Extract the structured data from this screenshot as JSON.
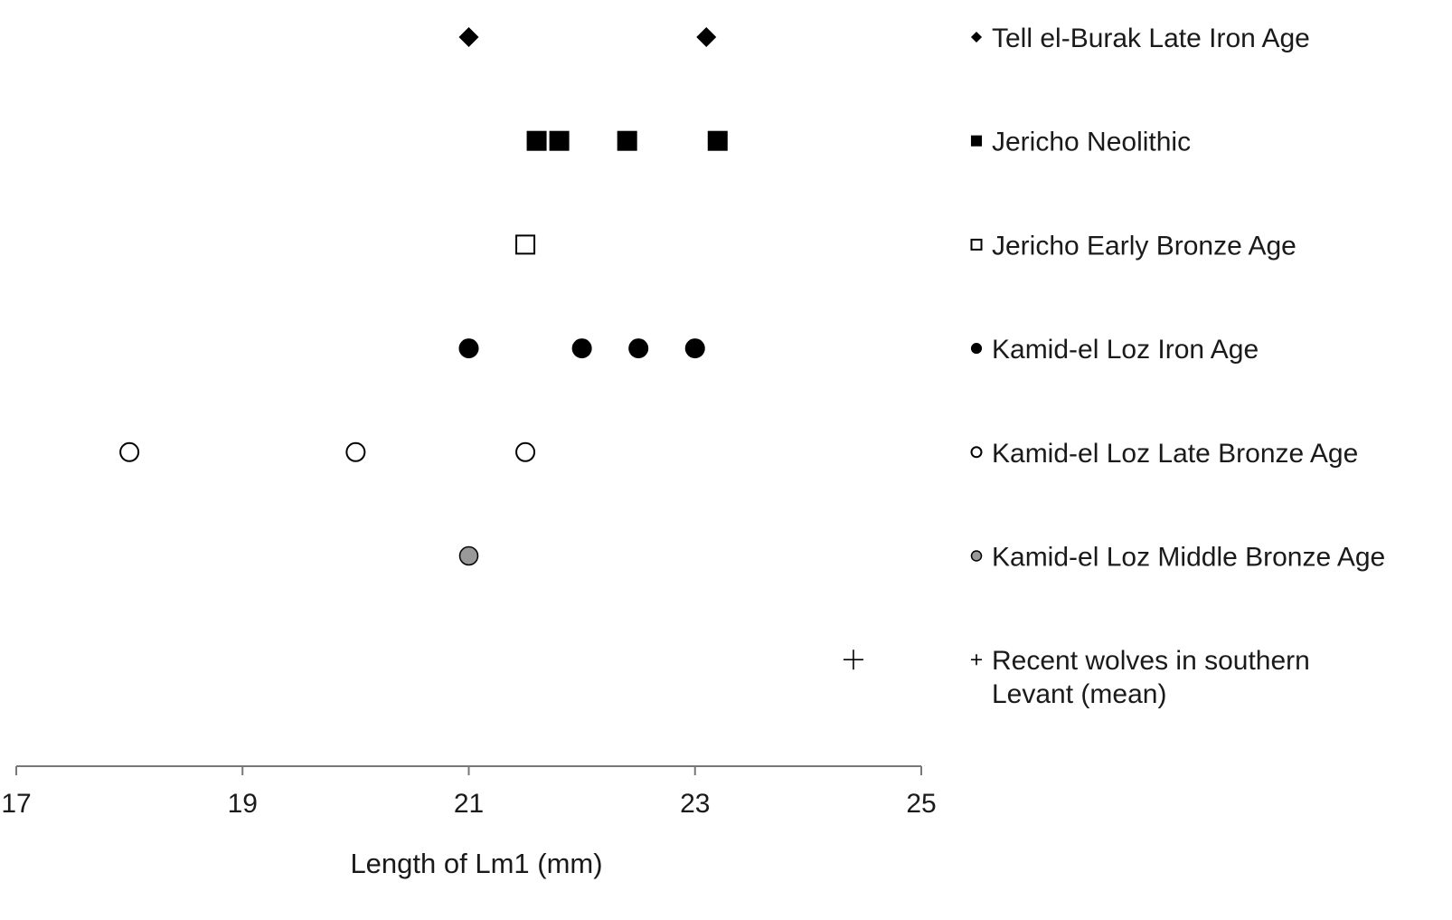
{
  "chart_data": {
    "type": "scatter",
    "title": "",
    "xlabel": "Length of Lm1 (mm)",
    "ylabel": "",
    "xlim": [
      17,
      25
    ],
    "xticks": [
      17,
      19,
      21,
      23,
      25
    ],
    "grid": false,
    "legend_position": "right",
    "series": [
      {
        "name": "Tell el-Burak Late Iron Age",
        "marker": "diamond-filled",
        "color": "#000000",
        "x": [
          21.0,
          23.1
        ]
      },
      {
        "name": "Jericho Neolithic",
        "marker": "square-filled",
        "color": "#000000",
        "x": [
          21.6,
          21.8,
          22.4,
          23.2
        ]
      },
      {
        "name": "Jericho Early Bronze Age",
        "marker": "square-open",
        "color": "#000000",
        "x": [
          21.5
        ]
      },
      {
        "name": "Kamid-el Loz Iron Age",
        "marker": "circle-filled",
        "color": "#000000",
        "x": [
          21.0,
          22.0,
          22.5,
          23.0
        ]
      },
      {
        "name": "Kamid-el Loz Late Bronze Age",
        "marker": "circle-open",
        "color": "#000000",
        "x": [
          18.0,
          20.0,
          21.5
        ]
      },
      {
        "name": "Kamid-el Loz Middle Bronze Age",
        "marker": "circle-gray",
        "color": "#999999",
        "x": [
          21.0
        ]
      },
      {
        "name": "Recent wolves in southern Levant (mean)",
        "label_lines": [
          "Recent wolves in southern",
          "Levant (mean)"
        ],
        "marker": "plus",
        "color": "#000000",
        "x": [
          24.4
        ]
      }
    ]
  }
}
